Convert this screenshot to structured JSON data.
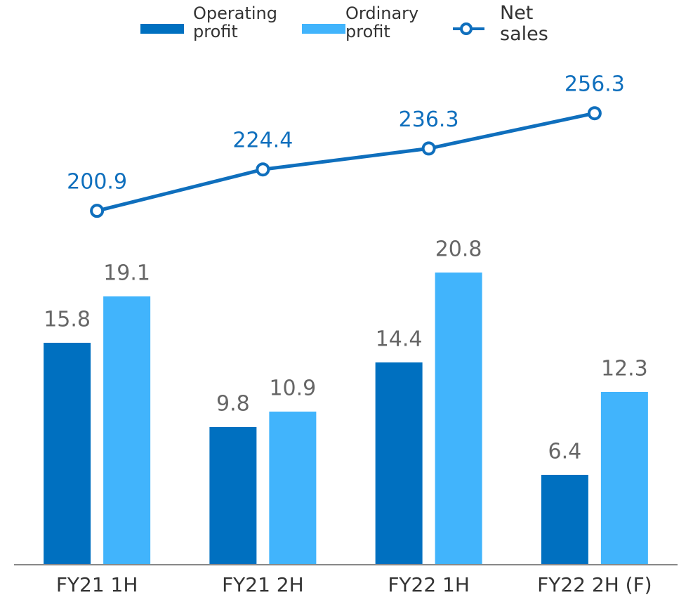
{
  "chart_data": {
    "type": "bar",
    "categories": [
      "FY21 1H",
      "FY21 2H",
      "FY22 1H",
      "FY22 2H (F)"
    ],
    "series": [
      {
        "name": "Operating profit",
        "color": "#0070c0",
        "values": [
          15.8,
          9.8,
          14.4,
          6.4
        ]
      },
      {
        "name": "Ordinary profit",
        "color": "#41b4fc",
        "values": [
          19.1,
          10.9,
          20.8,
          12.3
        ]
      },
      {
        "name": "Net sales",
        "color": "#0f6fbd",
        "type": "line",
        "axis": "y2",
        "values": [
          200.9,
          224.4,
          236.3,
          256.3
        ]
      }
    ],
    "ylim": [
      0,
      40
    ],
    "y2lim": [
      0,
      319
    ],
    "grid": false,
    "legend": "top"
  }
}
